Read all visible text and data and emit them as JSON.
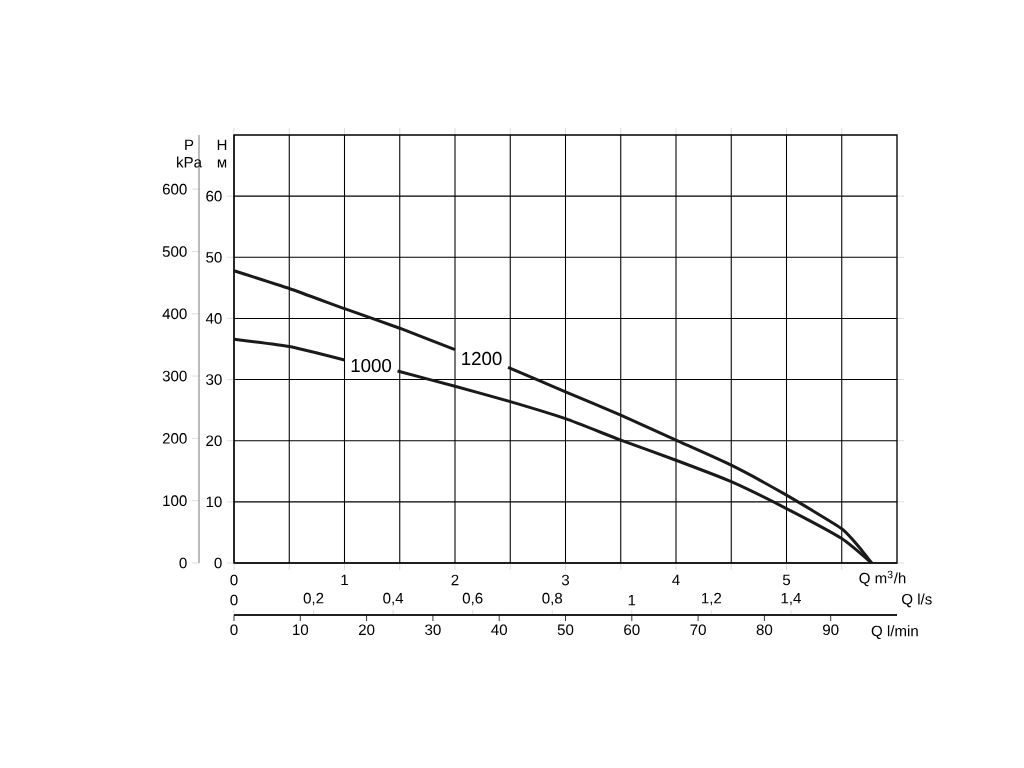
{
  "chart_data": {
    "type": "line",
    "xlabel": "Q m$^{3}$/h",
    "ylabel": "H м",
    "y2label": "P kPa",
    "x2label": "Q l/s",
    "annotations": [
      "Q l/min",
      "0",
      "10",
      "20",
      "30",
      "40",
      "50",
      "60",
      "70",
      "80",
      "90"
    ],
    "xlim": [
      0,
      6
    ],
    "xticks": [
      0,
      {
        "value": 0.5,
        "label": null
      },
      1,
      {
        "value": 1.5,
        "label": null
      },
      2,
      {
        "value": 2.5,
        "label": null
      },
      3,
      {
        "value": 3.5,
        "label": null
      },
      4,
      {
        "value": 4.5,
        "label": null
      },
      5,
      {
        "value": 5.5,
        "label": null
      }
    ],
    "ylim": [
      0,
      70
    ],
    "yticks": [
      0,
      10,
      20,
      30,
      40,
      50,
      60
    ],
    "y2lim": [
      0,
      687
    ],
    "y2ticks": [
      0,
      100,
      200,
      300,
      400,
      500,
      600
    ],
    "x2lim": [
      0,
      1.6667
    ],
    "x2ticks": [
      0,
      {
        "value": 0.2,
        "label": "0,2"
      },
      {
        "value": 0.4,
        "label": "0,4"
      },
      {
        "value": 0.6,
        "label": "0,6"
      },
      {
        "value": 0.8,
        "label": "0,8"
      },
      1,
      {
        "value": 1.2,
        "label": "1,2"
      },
      {
        "value": 1.4,
        "label": "1,4"
      }
    ],
    "grid": true,
    "series": [
      {
        "name": "1000",
        "color": "#1a1a1a",
        "x": [
          0,
          0.5,
          1.0,
          1.24,
          1.48,
          2.0,
          2.5,
          3.0,
          3.5,
          4.0,
          4.5,
          5.0,
          5.5,
          5.77
        ],
        "values": [
          36.6,
          35.4,
          33.2,
          null,
          31.4,
          28.9,
          26.4,
          23.6,
          20.1,
          16.8,
          13.3,
          8.9,
          4.0,
          0
        ]
      },
      {
        "name": "1200",
        "color": "#1a1a1a",
        "x": [
          0,
          0.5,
          1.0,
          1.5,
          2.0,
          2.24,
          2.48,
          3.0,
          3.5,
          4.0,
          4.5,
          5.0,
          5.5,
          5.68,
          5.77
        ],
        "values": [
          47.8,
          44.9,
          41.6,
          38.4,
          34.9,
          null,
          32.0,
          28.0,
          24.2,
          20.1,
          16.0,
          11.1,
          5.6,
          2.1,
          0
        ]
      }
    ]
  }
}
